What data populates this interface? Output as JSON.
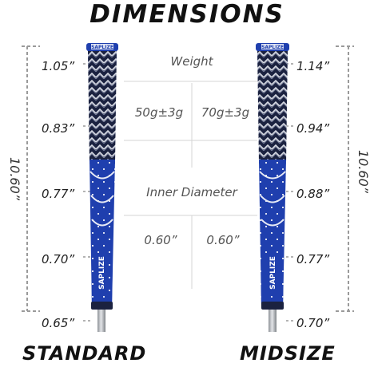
{
  "title": "DIMENSIONS",
  "standard": {
    "name": "STANDARD",
    "length": "10.60”",
    "diameters": [
      "1.05”",
      "0.83”",
      "0.77”",
      "0.70”",
      "0.65”"
    ]
  },
  "midsize": {
    "name": "MIDSIZE",
    "length": "10.60”",
    "diameters": [
      "1.14”",
      "0.94”",
      "0.88”",
      "0.77”",
      "0.70”"
    ]
  },
  "table": {
    "weight_heading": "Weight",
    "standard_weight": "50g±3g",
    "midsize_weight": "70g±3g",
    "inner_diameter_heading": "Inner Diameter",
    "standard_inner_diameter": "0.60”",
    "midsize_inner_diameter": "0.60”"
  },
  "brand": "SAPLIZE",
  "colors": {
    "grip_blue": "#1f3fae",
    "grip_navy": "#1b2240",
    "grip_light": "#c9ccd6",
    "shaft": "#b8bcc2",
    "dash": "#9a9a9a",
    "divider": "#d4d4d4"
  }
}
